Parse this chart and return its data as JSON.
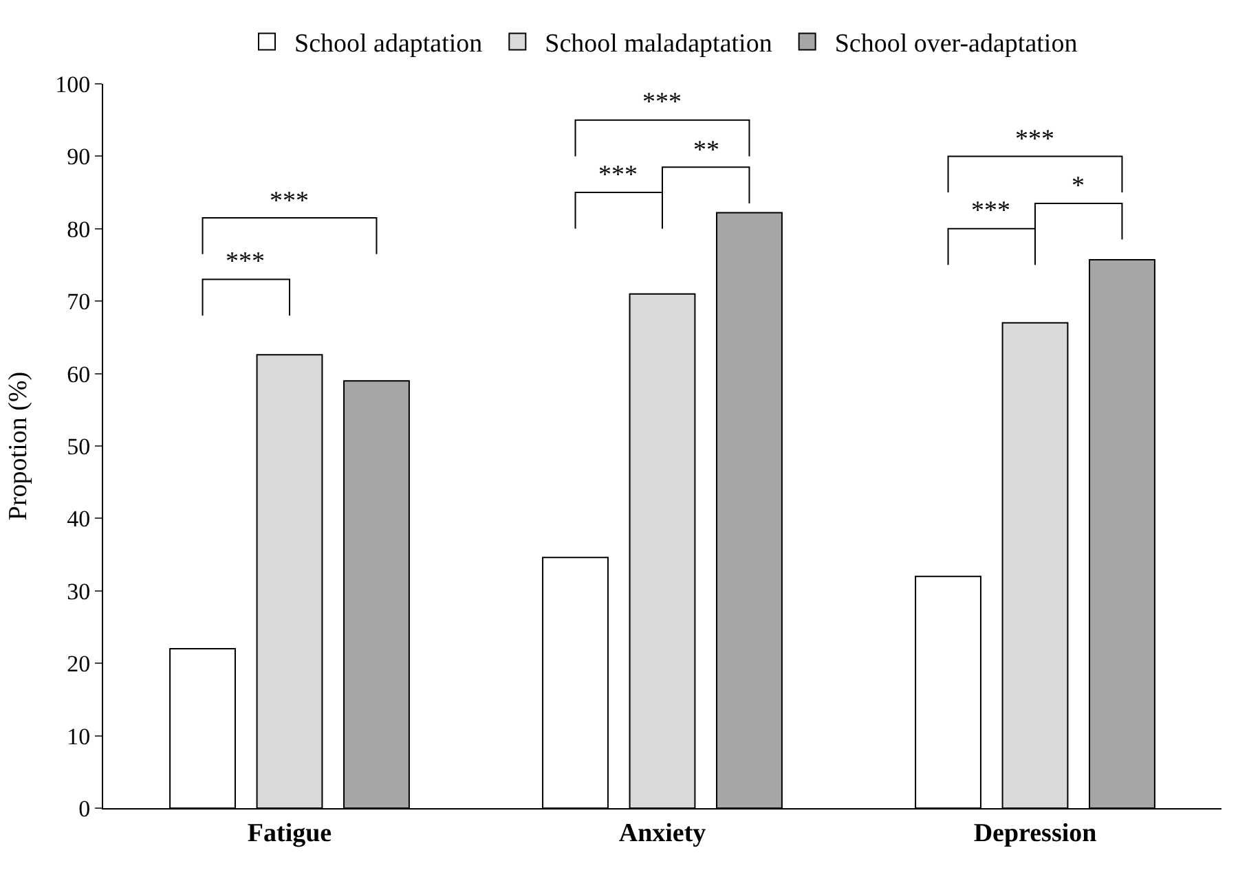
{
  "chart_data": {
    "type": "bar",
    "ylabel": "Propotion (%)",
    "categories": [
      "Fatigue",
      "Anxiety",
      "Depression"
    ],
    "series": [
      {
        "name": "School adaptation",
        "color": "#ffffff",
        "values": [
          22,
          34.6,
          32
        ]
      },
      {
        "name": "School maladaptation",
        "color": "#d9d9d9",
        "values": [
          62.6,
          71,
          67
        ]
      },
      {
        "name": "School over-adaptation",
        "color": "#a6a6a6",
        "values": [
          59,
          82.2,
          75.7
        ]
      }
    ],
    "ylim": [
      0,
      100
    ],
    "yticks": [
      0,
      10,
      20,
      30,
      40,
      50,
      60,
      70,
      80,
      90,
      100
    ],
    "legend": "top",
    "annotations": [
      "***",
      "***",
      "***",
      "***",
      "**",
      "***",
      "***",
      "*"
    ]
  }
}
